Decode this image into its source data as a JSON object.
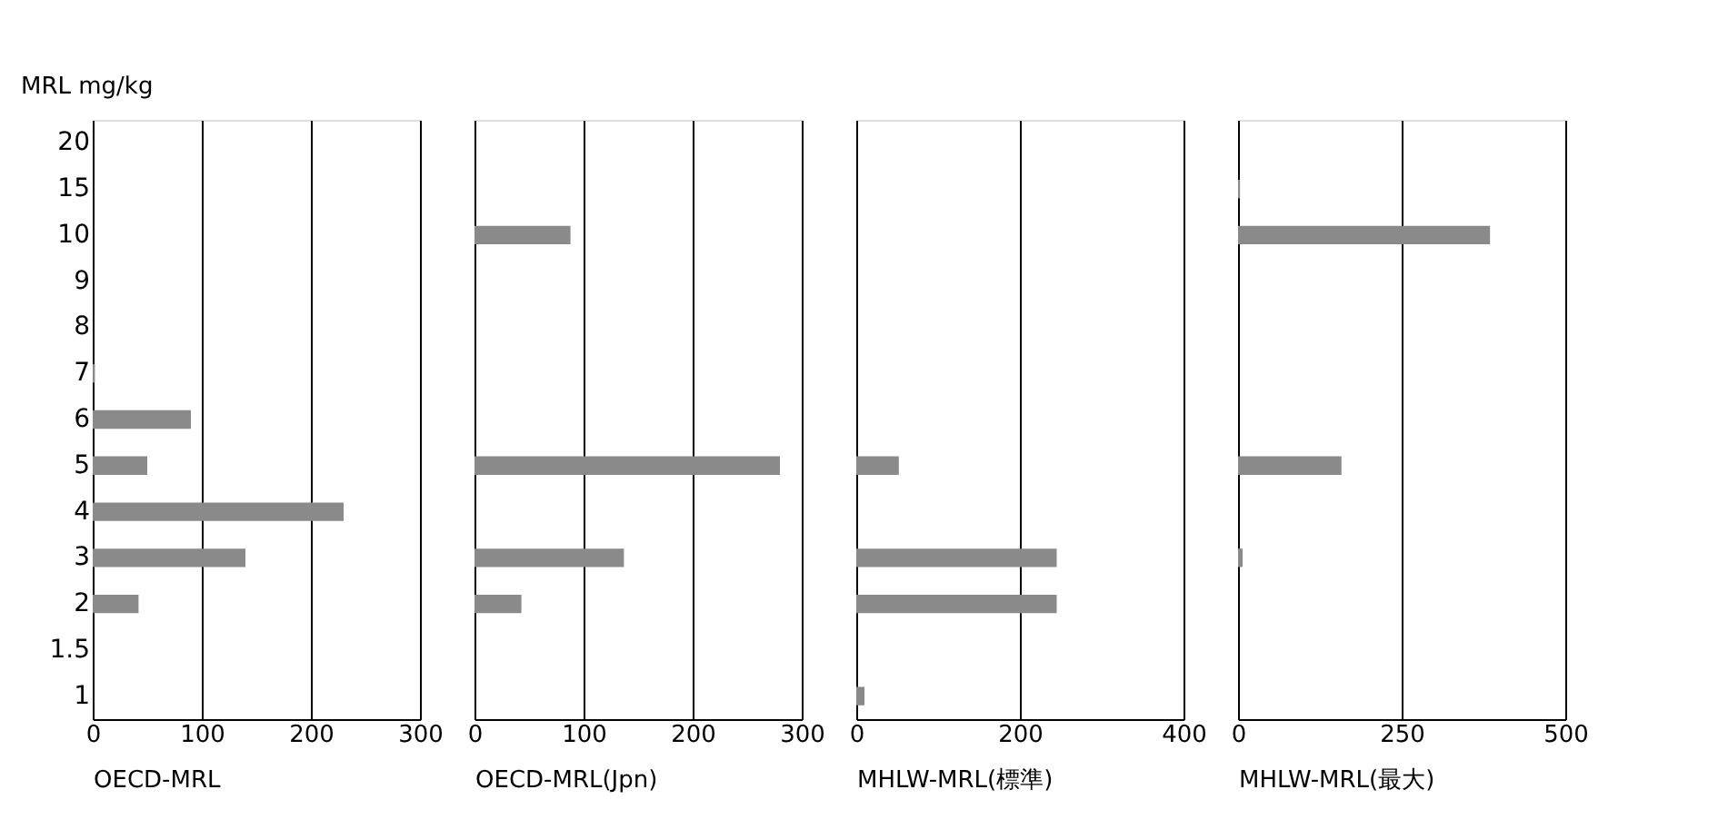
{
  "chart_data": [
    {
      "type": "bar",
      "orientation": "horizontal",
      "ylabel": "MRL mg/kg",
      "xlabel": "OECD-MRL",
      "categories": [
        "20",
        "15",
        "10",
        "9",
        "8",
        "7",
        "6",
        "5",
        "4",
        "3",
        "2",
        "1.5",
        "1"
      ],
      "values": [
        null,
        null,
        null,
        null,
        null,
        2,
        90,
        50,
        230,
        140,
        42,
        null,
        null
      ],
      "color": "#8a8a8a",
      "xlim": [
        0,
        300
      ],
      "xticks": [
        0,
        100,
        200,
        300
      ],
      "grid": "x"
    },
    {
      "type": "bar",
      "orientation": "horizontal",
      "xlabel": "OECD-MRL(Jpn)",
      "categories": [
        "20",
        "15",
        "10",
        "9",
        "8",
        "7",
        "6",
        "5",
        "4",
        "3",
        "2",
        "1.5",
        "1"
      ],
      "values": [
        null,
        null,
        88,
        null,
        null,
        null,
        null,
        280,
        null,
        137,
        43,
        null,
        null
      ],
      "color": "#8a8a8a",
      "xlim": [
        0,
        300
      ],
      "xticks": [
        0,
        100,
        200,
        300
      ],
      "grid": "x",
      "tick_labels": "x"
    },
    {
      "type": "bar",
      "orientation": "horizontal",
      "xlabel": "MHLW-MRL(標準)",
      "categories": [
        "20",
        "15",
        "10",
        "9",
        "8",
        "7",
        "6",
        "5",
        "4",
        "3",
        "2",
        "1.5",
        "1"
      ],
      "values": [
        null,
        null,
        null,
        null,
        null,
        null,
        null,
        52,
        null,
        245,
        245,
        null,
        10
      ],
      "color": "#8a8a8a",
      "xlim": [
        0,
        400
      ],
      "xticks": [
        0,
        200,
        400
      ],
      "grid": "x",
      "tick_labels": "x"
    },
    {
      "type": "bar",
      "orientation": "horizontal",
      "xlabel": "MHLW-MRL(最大)",
      "categories": [
        "20",
        "15",
        "10",
        "9",
        "8",
        "7",
        "6",
        "5",
        "4",
        "3",
        "2",
        "1.5",
        "1"
      ],
      "values": [
        null,
        3,
        385,
        null,
        null,
        null,
        null,
        158,
        null,
        7,
        null,
        null,
        null
      ],
      "color": "#8a8a8a",
      "xlim": [
        0,
        500
      ],
      "xticks": [
        0,
        250,
        500
      ],
      "grid": "x",
      "tick_labels": "x"
    }
  ]
}
